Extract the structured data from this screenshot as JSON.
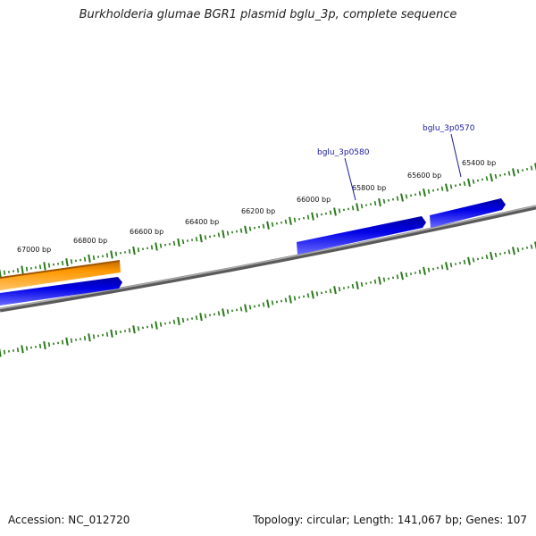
{
  "title": "Burkholderia glumae BGR1 plasmid bglu_3p, complete sequence",
  "footer": {
    "accession": "Accession: NC_012720",
    "summary": "Topology: circular; Length: 141,067 bp; Genes: 107"
  },
  "colors": {
    "backbone": "#808080",
    "tick": "#2a7a1a",
    "gene_forward": "#ff9900",
    "gene_reverse": "#0000e0",
    "label": "#1a1a9e"
  },
  "scale_labels": [
    "67000 bp",
    "66800 bp",
    "66600 bp",
    "66400 bp",
    "66200 bp",
    "66000 bp",
    "65800 bp",
    "65600 bp",
    "65400 bp"
  ],
  "gene_labels": [
    "bglu_3p0580",
    "bglu_3p0570"
  ],
  "genes": [
    {
      "strand": "forward",
      "color": "orange"
    },
    {
      "strand": "reverse",
      "color": "blue"
    },
    {
      "strand": "reverse",
      "color": "blue",
      "label": "bglu_3p0580"
    },
    {
      "strand": "reverse",
      "color": "blue",
      "label": "bglu_3p0570"
    }
  ]
}
